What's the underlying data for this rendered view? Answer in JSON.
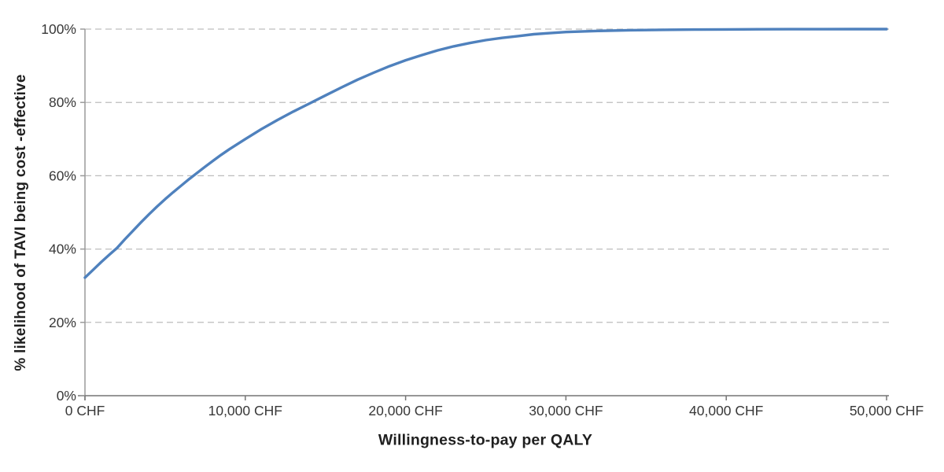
{
  "page": {
    "background": "#ffffff"
  },
  "colors": {
    "curve": "#4f81bd",
    "gridline": "#bdbdbd",
    "y_axis": "#9a9a9a",
    "x_axis": "#757575",
    "tick_text": "#383838",
    "title_text": "#1f1f1f"
  },
  "chart_data": {
    "type": "line",
    "title": "",
    "xlabel": "Willingness-to-pay per QALY",
    "ylabel": "% likelihood of TAVI being cost -effective",
    "xlim": [
      0,
      50000
    ],
    "ylim": [
      0,
      100
    ],
    "grid": "horizontal-dashed",
    "legend": "none",
    "x_ticks": [
      {
        "value": 0,
        "label": "0 CHF"
      },
      {
        "value": 10000,
        "label": "10,000 CHF"
      },
      {
        "value": 20000,
        "label": "20,000 CHF"
      },
      {
        "value": 30000,
        "label": "30,000 CHF"
      },
      {
        "value": 40000,
        "label": "40,000 CHF"
      },
      {
        "value": 50000,
        "label": "50,000 CHF"
      }
    ],
    "y_ticks": [
      {
        "value": 0,
        "label": "0%"
      },
      {
        "value": 20,
        "label": "20%"
      },
      {
        "value": 40,
        "label": "40%"
      },
      {
        "value": 60,
        "label": "60%"
      },
      {
        "value": 80,
        "label": "80%"
      },
      {
        "value": 100,
        "label": "100%"
      }
    ],
    "series": [
      {
        "name": "TAVI",
        "color": "#4f81bd",
        "points": [
          [
            0,
            32.2
          ],
          [
            500,
            34.3
          ],
          [
            1000,
            36.4
          ],
          [
            1500,
            38.4
          ],
          [
            2000,
            40.3
          ],
          [
            2500,
            42.7
          ],
          [
            3000,
            45.0
          ],
          [
            3500,
            47.3
          ],
          [
            4000,
            49.5
          ],
          [
            4500,
            51.6
          ],
          [
            5000,
            53.6
          ],
          [
            5500,
            55.5
          ],
          [
            6000,
            57.3
          ],
          [
            6500,
            59.1
          ],
          [
            7000,
            60.8
          ],
          [
            7500,
            62.5
          ],
          [
            8000,
            64.1
          ],
          [
            8500,
            65.7
          ],
          [
            9000,
            67.2
          ],
          [
            9500,
            68.6
          ],
          [
            10000,
            70.0
          ],
          [
            11000,
            72.7
          ],
          [
            12000,
            75.2
          ],
          [
            13000,
            77.5
          ],
          [
            14000,
            79.7
          ],
          [
            15000,
            81.9
          ],
          [
            16000,
            84.1
          ],
          [
            17000,
            86.2
          ],
          [
            18000,
            88.1
          ],
          [
            19000,
            89.9
          ],
          [
            20000,
            91.5
          ],
          [
            21000,
            92.9
          ],
          [
            22000,
            94.2
          ],
          [
            23000,
            95.3
          ],
          [
            24000,
            96.2
          ],
          [
            25000,
            97.0
          ],
          [
            26000,
            97.6
          ],
          [
            27000,
            98.1
          ],
          [
            28000,
            98.6
          ],
          [
            29000,
            98.9
          ],
          [
            30000,
            99.2
          ],
          [
            32000,
            99.5
          ],
          [
            34000,
            99.7
          ],
          [
            36000,
            99.8
          ],
          [
            38000,
            99.87
          ],
          [
            40000,
            99.92
          ],
          [
            42000,
            99.95
          ],
          [
            44000,
            99.97
          ],
          [
            46000,
            99.98
          ],
          [
            48000,
            99.99
          ],
          [
            50000,
            100
          ]
        ]
      }
    ]
  }
}
